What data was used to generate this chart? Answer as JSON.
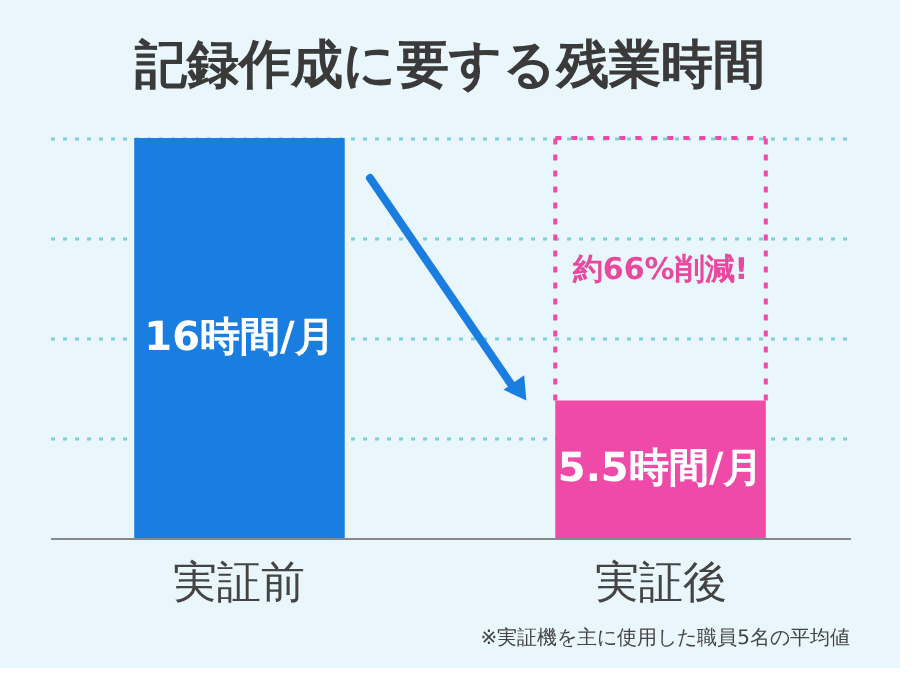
{
  "chart_data": {
    "type": "bar",
    "title": "記録作成に要する残業時間",
    "categories": [
      "実証前",
      "実証後"
    ],
    "values": [
      16,
      5.5
    ],
    "colors": [
      "#1a7de0",
      "#f04aa8"
    ],
    "value_labels": [
      "16時間/月",
      "5.5時間/月"
    ],
    "ylim": [
      0,
      16
    ],
    "yticks": [
      {
        "value": 4,
        "label": null
      },
      {
        "value": 8,
        "label": null
      },
      {
        "value": 12,
        "label": null
      },
      {
        "value": 16,
        "label": null
      }
    ],
    "grid": "y",
    "annotations": [
      "約66%削減!",
      "※実証機を主に使用した職員5名の平均値"
    ]
  }
}
